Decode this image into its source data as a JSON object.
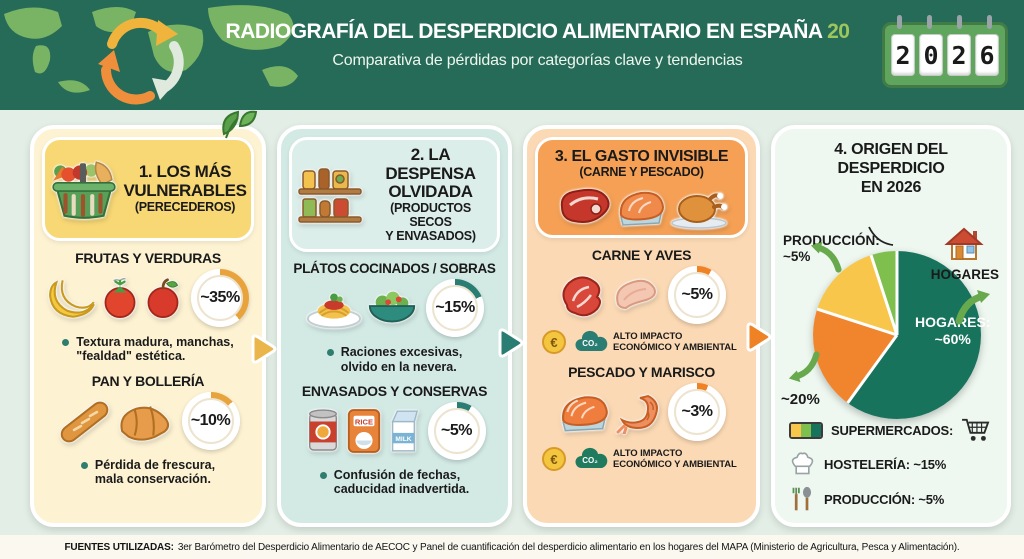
{
  "header": {
    "title": "RADIOGRAFÍA DEL DESPERDICIO ALIMENTARIO EN ESPAÑA",
    "title_accent": "20",
    "subtitle": "Comparativa de pérdidas por categorías clave y tendencias",
    "calendar_digits": [
      "2",
      "0",
      "2",
      "6"
    ],
    "colors": {
      "header_bg": "#266a58",
      "accent_green": "#9cc75c"
    }
  },
  "columns": [
    {
      "title_l1": "1. LOS MÁS",
      "title_l2": "VULNERABLES",
      "subtitle": "(PERECEDEROS)",
      "sections": [
        {
          "heading": "FRUTAS Y VERDURAS",
          "value": "~35%",
          "pct": 35,
          "arc_color": "#e8a33c",
          "note_l1": "Textura madura, manchas,",
          "note_l2": "\"fealdad\" estética."
        },
        {
          "heading": "PAN Y BOLLERÍA",
          "value": "~10%",
          "pct": 10,
          "arc_color": "#e8a33c",
          "note_l1": "Pérdida de frescura,",
          "note_l2": "mala conservación."
        }
      ]
    },
    {
      "title_l1": "2. LA DESPENSA",
      "title_l2": "OLVIDADA",
      "subtitle_l1": "(PRODUCTOS SECOS",
      "subtitle_l2": "Y ENVASADOS)",
      "rice_label": "RICE",
      "milk_label": "MILK",
      "sections": [
        {
          "heading": "PLÁTOS COCINADOS / SOBRAS",
          "value": "~15%",
          "pct": 15,
          "arc_color": "#2a7d72",
          "note_l1": "Raciones excesivas,",
          "note_l2": "olvido en la nevera."
        },
        {
          "heading": "ENVASADOS Y CONSERVAS",
          "value": "~5%",
          "pct": 5,
          "arc_color": "#2a7d72",
          "note_l1": "Confusión de fechas,",
          "note_l2": "caducidad inadvertida."
        }
      ]
    },
    {
      "title_l1": "3. EL GASTO INVISIBLE",
      "subtitle": "(CARNE Y PESCADO)",
      "euro_symbol": "€",
      "co2_label": "CO₂",
      "sections": [
        {
          "heading": "CARNE Y AVES",
          "value": "~5%",
          "pct": 5,
          "arc_color": "#ef8224",
          "impact_l1": "ALTO IMPACTO",
          "impact_l2": "ECONÓMICO Y AMBIENTAL"
        },
        {
          "heading": "PESCADO Y MARISCO",
          "value": "~3%",
          "pct": 3,
          "arc_color": "#ef8224",
          "impact_l1": "ALTO IMPACTO",
          "impact_l2": "ECONÓMICO Y AMBIENTAL"
        }
      ]
    }
  ],
  "origin": {
    "title_l1": "4. ORIGEN DEL",
    "title_l2": "DESPERDICIO",
    "title_l3": "EN 2026",
    "label_produccion": "PRODUCCIÓN:",
    "label_produccion_value": "~5%",
    "label_hogares_side": "HOGARES",
    "label_slice_l1": "HOGARES:",
    "label_slice_l2": "~60%",
    "label_super_value": "~20%",
    "legend": [
      {
        "label": "SUPERMERCADOS:",
        "icon": "cart-icon"
      },
      {
        "label": "HOSTELERÍA: ~15%",
        "icon": "chef-hat-icon"
      },
      {
        "label": "PRODUCCIÓN: ~5%",
        "icon": "utensils-icon"
      }
    ]
  },
  "chart_data": {
    "type": "pie",
    "title": "4. ORIGEN DEL DESPERDICIO EN 2026",
    "slices": [
      {
        "label": "Hogares",
        "value": 60,
        "color": "#17735c"
      },
      {
        "label": "Supermercados",
        "value": 20,
        "color": "#f0852d"
      },
      {
        "label": "Hostelería",
        "value": 15,
        "color": "#f7c64a"
      },
      {
        "label": "Producción",
        "value": 5,
        "color": "#7fbf4d"
      }
    ],
    "start_angle_deg": 0,
    "direction": "clockwise",
    "legend_position": "bottom-left",
    "annotations": [
      "PRODUCCIÓN: ~5%",
      "HOGARES",
      "HOGARES: ~60%",
      "~20%"
    ]
  },
  "footer": {
    "label": "FUENTES UTILIZADAS:",
    "text": "3er Barómetro del Desperdicio Alimentario de AECOC y Panel de cuantificación del desperdicio alimentario en los hogares del MAPA (Ministerio de Agricultura, Pesca y Alimentación)."
  }
}
